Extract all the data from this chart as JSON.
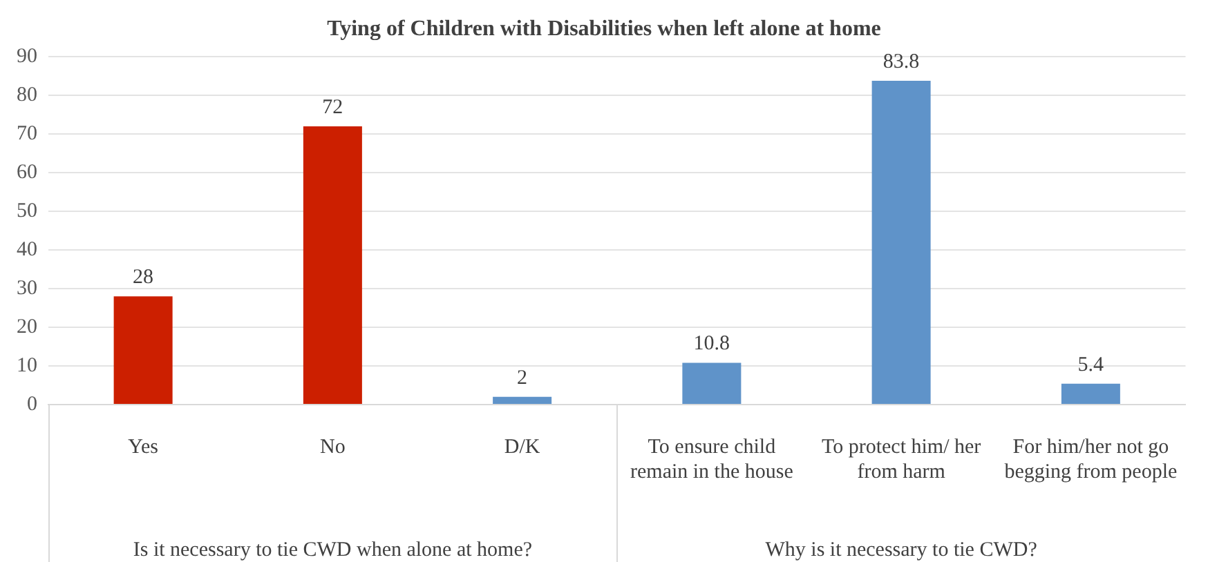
{
  "chart_data": {
    "type": "bar",
    "title": "Tying of Children with Disabilities when left alone at home",
    "categories": [
      "Yes",
      "No",
      "D/K",
      "To ensure child remain in the house",
      "To protect him/ her from harm",
      "For him/her not go begging from people"
    ],
    "values": [
      28,
      72,
      2,
      10.8,
      83.8,
      5.4
    ],
    "colors": [
      "#cc1f00",
      "#cc1f00",
      "#5f93c9",
      "#5f93c9",
      "#5f93c9",
      "#5f93c9"
    ],
    "ylim": [
      0,
      90
    ],
    "yticks": [
      0,
      10,
      20,
      30,
      40,
      50,
      60,
      70,
      80,
      90
    ],
    "grid": "y",
    "data_labels": true,
    "annotations": [
      "Is it necessary to tie CWD when alone at home?",
      "Why is it necessary to tie CWD?"
    ]
  }
}
